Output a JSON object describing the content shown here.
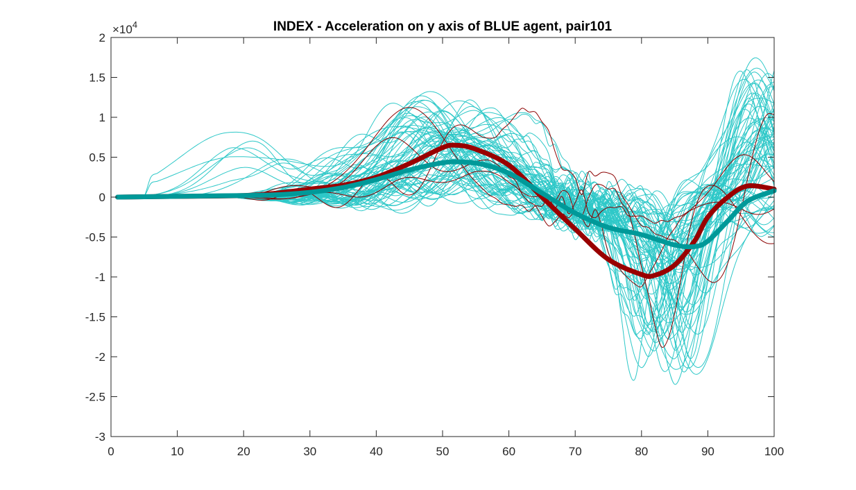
{
  "chart_data": {
    "type": "line",
    "title": "INDEX - Acceleration on y axis of BLUE agent, pair101",
    "xlabel": "",
    "ylabel": "",
    "xlim": [
      0,
      100
    ],
    "ylim": [
      -3,
      2
    ],
    "y_exponent_label": "×10",
    "y_exponent_power": "4",
    "xticks": [
      0,
      10,
      20,
      30,
      40,
      50,
      60,
      70,
      80,
      90,
      100
    ],
    "xtick_labels": [
      "0",
      "10",
      "20",
      "30",
      "40",
      "50",
      "60",
      "70",
      "80",
      "90",
      "100"
    ],
    "yticks": [
      -3,
      -2.5,
      -2,
      -1.5,
      -1,
      -0.5,
      0,
      0.5,
      1,
      1.5,
      2
    ],
    "ytick_labels": [
      "-3",
      "-2.5",
      "-2",
      "-1.5",
      "-1",
      "-0.5",
      "0",
      "0.5",
      "1",
      "1.5",
      "2"
    ],
    "grid": false,
    "legend": "none",
    "colors": {
      "thin_cyan": "#2ec8c8",
      "thin_red": "#8b0000",
      "mean_red": "#990000",
      "mean_teal": "#009999"
    },
    "series": [
      {
        "role": "mean-red",
        "color": "#990000",
        "linewidth": "thick",
        "x": [
          1,
          10,
          20,
          25,
          30,
          35,
          40,
          45,
          50,
          52,
          55,
          60,
          65,
          70,
          75,
          80,
          82,
          85,
          88,
          90,
          93,
          96,
          100
        ],
        "y": [
          0.0,
          0.01,
          0.02,
          0.05,
          0.1,
          0.15,
          0.25,
          0.42,
          0.62,
          0.65,
          0.6,
          0.4,
          0.0,
          -0.4,
          -0.78,
          -0.97,
          -0.98,
          -0.85,
          -0.55,
          -0.25,
          0.0,
          0.14,
          0.1
        ]
      },
      {
        "role": "mean-teal",
        "color": "#009999",
        "linewidth": "thick",
        "x": [
          1,
          10,
          20,
          25,
          30,
          35,
          40,
          45,
          50,
          53,
          56,
          60,
          65,
          70,
          75,
          80,
          85,
          88,
          90,
          93,
          96,
          100
        ],
        "y": [
          0.0,
          0.01,
          0.02,
          0.03,
          0.06,
          0.12,
          0.22,
          0.34,
          0.43,
          0.44,
          0.41,
          0.3,
          0.05,
          -0.2,
          -0.38,
          -0.47,
          -0.6,
          -0.62,
          -0.55,
          -0.3,
          -0.05,
          0.08
        ]
      }
    ]
  }
}
